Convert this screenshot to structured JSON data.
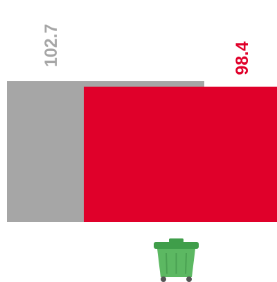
{
  "chart_data": {
    "type": "bar",
    "values": [
      102.7,
      98.4
    ],
    "colors": [
      "#a6a6a6",
      "#e0002a"
    ]
  }
}
